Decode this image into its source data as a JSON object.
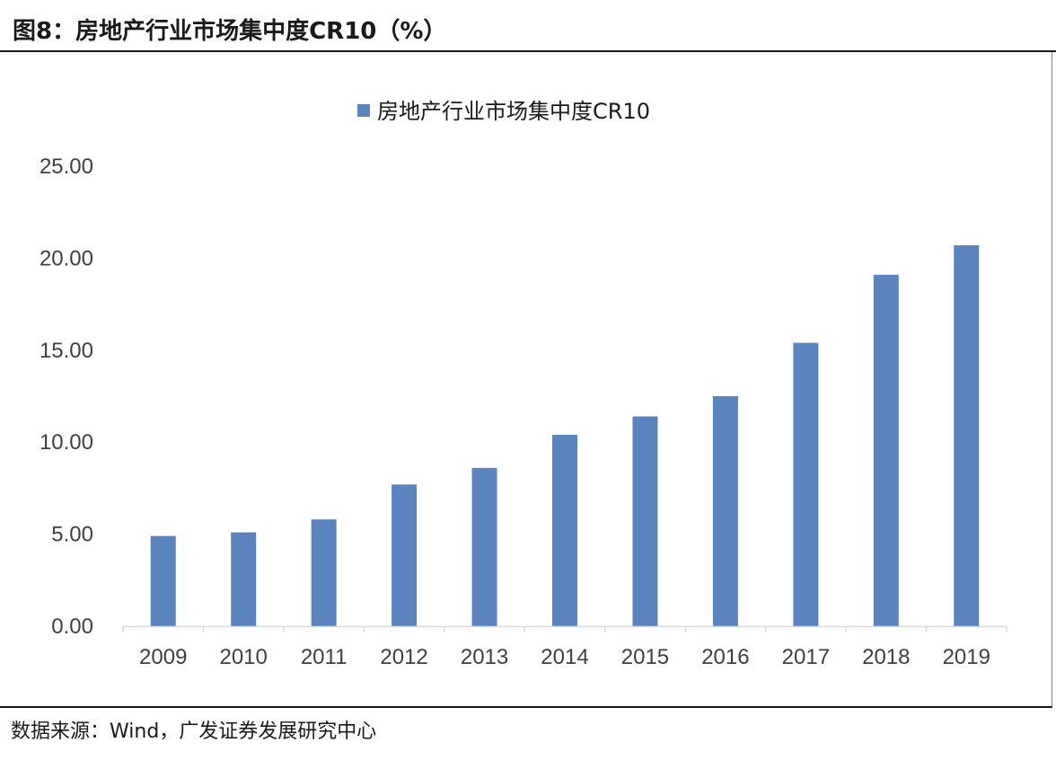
{
  "figure": {
    "title": "图8：房地产行业市场集中度CR10（%）",
    "source": "数据来源：Wind，广发证券发展研究中心"
  },
  "colors": {
    "bar": "#5b83be",
    "axis": "#d9d9d9",
    "text": "#404040"
  },
  "chart_data": {
    "type": "bar",
    "title": "",
    "xlabel": "",
    "ylabel": "",
    "categories": [
      "2009",
      "2010",
      "2011",
      "2012",
      "2013",
      "2014",
      "2015",
      "2016",
      "2017",
      "2018",
      "2019"
    ],
    "series": [
      {
        "name": "房地产行业市场集中度CR10",
        "values": [
          4.9,
          5.1,
          5.8,
          7.7,
          8.6,
          10.4,
          11.4,
          12.5,
          15.4,
          19.1,
          20.7
        ]
      }
    ],
    "ylim": [
      0,
      25
    ],
    "yticks": [
      "0.00",
      "5.00",
      "10.00",
      "15.00",
      "20.00",
      "25.00"
    ],
    "grid": false,
    "legend_position": "top-center"
  }
}
